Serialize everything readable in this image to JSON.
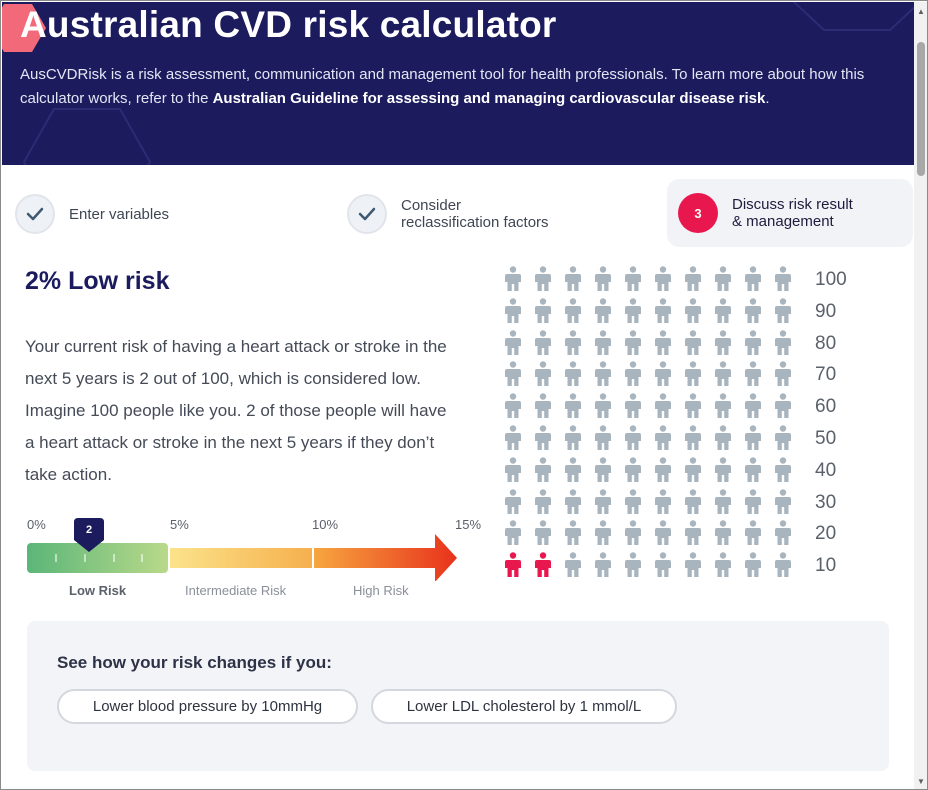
{
  "header": {
    "title": "Australian CVD risk calculator",
    "intro": "AusCVDRisk is a risk assessment, communication and management tool for health professionals. To learn more about how this calculator works, refer to the",
    "guideline_link": "Australian Guideline for assessing and managing cardiovascular disease risk",
    "intro_end": "."
  },
  "steps": [
    {
      "label": "Enter variables",
      "status": "complete",
      "icon": "check-icon"
    },
    {
      "label": "Consider reclassification factors",
      "status": "complete",
      "icon": "check-icon"
    },
    {
      "number": "3",
      "label": "Discuss risk result & management",
      "status": "active"
    }
  ],
  "result": {
    "title": "2% Low risk",
    "description": "Your current risk of having a heart attack or stroke in the next 5 years is 2 out of 100, which is considered low. Imagine 100 people like you. 2 of those people will have a heart attack or stroke in the next 5 years if they don’t take action."
  },
  "gauge": {
    "ticks": [
      "0%",
      "5%",
      "10%",
      "15%"
    ],
    "marker_value": "2",
    "risk_percent": 2,
    "zones": [
      "Low Risk",
      "Intermediate Risk",
      "High Risk"
    ]
  },
  "people_grid": {
    "total": 100,
    "affected": 2,
    "row_labels": [
      "100",
      "90",
      "80",
      "70",
      "60",
      "50",
      "40",
      "30",
      "20",
      "10"
    ],
    "colors": {
      "affected": "#e8184f",
      "unaffected": "#a9b5be"
    }
  },
  "changes": {
    "heading": "See how your risk changes if you:",
    "options": [
      "Lower blood pressure by 10mmHg",
      "Lower LDL cholesterol by 1 mmol/L"
    ]
  },
  "colors": {
    "navy": "#1c1b5e",
    "accent_pink": "#e8184f"
  }
}
